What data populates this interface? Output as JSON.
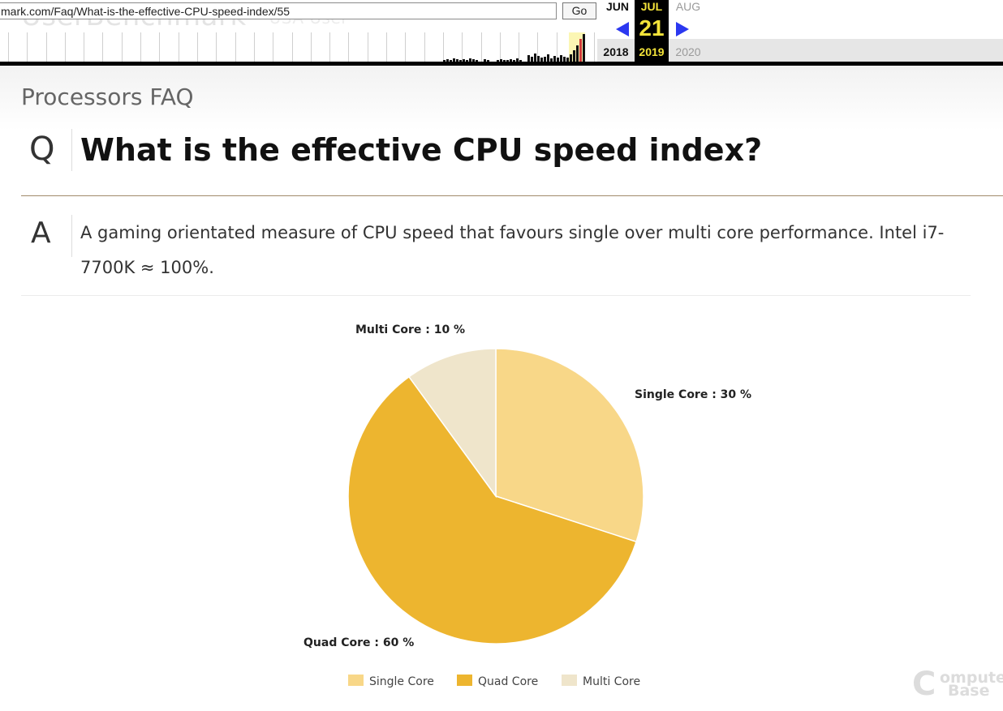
{
  "wayback": {
    "brand_background": "UserBenchmark",
    "brand_tag": "USA User",
    "url": "mark.com/Faq/What-is-the-effective-CPU-speed-index/55",
    "go_label": "Go",
    "months": {
      "prev": "JUN",
      "current": "JUL",
      "next": "AUG"
    },
    "day": "21",
    "years": {
      "prev": "2018",
      "current": "2019",
      "next": "2020"
    },
    "colors": {
      "arrow": "#2b38f0",
      "highlight": "#f3e33a"
    }
  },
  "page": {
    "section_title": "Processors FAQ",
    "q_letter": "Q",
    "question": "What is the effective CPU speed index?",
    "a_letter": "A",
    "answer": "A gaming orientated measure of CPU speed that favours single over multi core performance. Intel i7-7700K ≈ 100%."
  },
  "chart_data": {
    "type": "pie",
    "title": "",
    "slices": [
      {
        "name": "Single Core",
        "value": 30,
        "color": "#f8d788",
        "label": "Single Core : 30 %"
      },
      {
        "name": "Quad Core",
        "value": 60,
        "color": "#edb52f",
        "label": "Quad Core : 60 %"
      },
      {
        "name": "Multi Core",
        "value": 10,
        "color": "#efe5cb",
        "label": "Multi Core : 10 %"
      }
    ],
    "legend": [
      "Single Core",
      "Quad Core",
      "Multi Core"
    ],
    "legend_position": "bottom"
  },
  "watermark": {
    "big": "C",
    "line1": "omputer",
    "line2": "Base"
  }
}
